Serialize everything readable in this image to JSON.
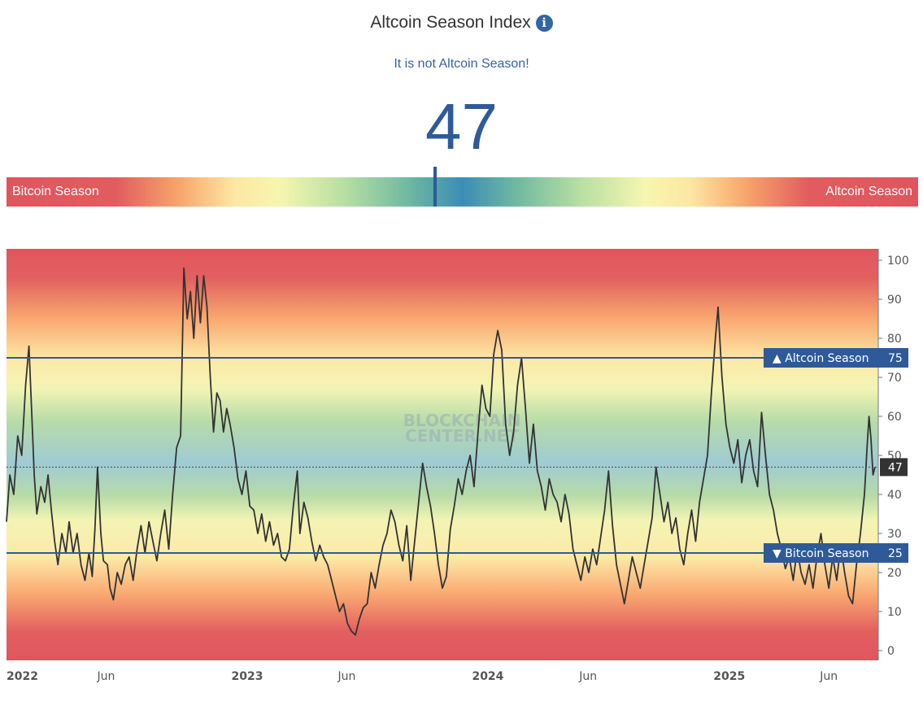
{
  "header": {
    "title": "Altcoin Season Index",
    "info_icon": "info-icon",
    "status": "It is not Altcoin Season!",
    "index_value": "47"
  },
  "gradient_bar": {
    "left_label": "Bitcoin Season",
    "right_label": "Altcoin Season",
    "marker_value": 47
  },
  "watermark": [
    "BLOCKCHAIN",
    "CENTER.NET"
  ],
  "chart_data": {
    "type": "line",
    "y_range": [
      0,
      100
    ],
    "x_range": [
      "2022-01-01",
      "2025-08-15"
    ],
    "y_ticks": [
      0,
      10,
      20,
      30,
      40,
      50,
      60,
      70,
      80,
      90,
      100
    ],
    "x_ticks": [
      {
        "label": "2022",
        "date": "2022-01-01",
        "bold": true
      },
      {
        "label": "Jun",
        "date": "2022-06-01",
        "bold": false
      },
      {
        "label": "2023",
        "date": "2023-01-01",
        "bold": true
      },
      {
        "label": "Jun",
        "date": "2023-06-01",
        "bold": false
      },
      {
        "label": "2024",
        "date": "2024-01-01",
        "bold": true
      },
      {
        "label": "Jun",
        "date": "2024-06-01",
        "bold": false
      },
      {
        "label": "2025",
        "date": "2025-01-01",
        "bold": true
      },
      {
        "label": "Jun",
        "date": "2025-06-01",
        "bold": false
      }
    ],
    "thresholds": [
      {
        "label": "▲ Altcoin Season",
        "value": 75
      },
      {
        "label": "▼ Bitcoin Season",
        "value": 25
      }
    ],
    "current": {
      "value": 47
    },
    "line_color": "#333333",
    "threshold_color": "#2e5a9a",
    "series": [
      {
        "points": [
          [
            "2022-01-01",
            33
          ],
          [
            "2022-01-06",
            45
          ],
          [
            "2022-01-12",
            40
          ],
          [
            "2022-01-18",
            55
          ],
          [
            "2022-01-24",
            50
          ],
          [
            "2022-01-30",
            68
          ],
          [
            "2022-02-04",
            78
          ],
          [
            "2022-02-08",
            62
          ],
          [
            "2022-02-12",
            45
          ],
          [
            "2022-02-16",
            35
          ],
          [
            "2022-02-22",
            42
          ],
          [
            "2022-02-28",
            38
          ],
          [
            "2022-03-05",
            45
          ],
          [
            "2022-03-10",
            36
          ],
          [
            "2022-03-15",
            28
          ],
          [
            "2022-03-20",
            22
          ],
          [
            "2022-03-26",
            30
          ],
          [
            "2022-04-01",
            25
          ],
          [
            "2022-04-06",
            33
          ],
          [
            "2022-04-12",
            25
          ],
          [
            "2022-04-18",
            30
          ],
          [
            "2022-04-24",
            22
          ],
          [
            "2022-04-30",
            18
          ],
          [
            "2022-05-06",
            25
          ],
          [
            "2022-05-11",
            19
          ],
          [
            "2022-05-15",
            31
          ],
          [
            "2022-05-19",
            47
          ],
          [
            "2022-05-24",
            30
          ],
          [
            "2022-05-28",
            23
          ],
          [
            "2022-06-03",
            22
          ],
          [
            "2022-06-07",
            16
          ],
          [
            "2022-06-12",
            13
          ],
          [
            "2022-06-18",
            20
          ],
          [
            "2022-06-24",
            17
          ],
          [
            "2022-06-30",
            22
          ],
          [
            "2022-07-06",
            24
          ],
          [
            "2022-07-12",
            18
          ],
          [
            "2022-07-18",
            26
          ],
          [
            "2022-07-24",
            32
          ],
          [
            "2022-07-30",
            25
          ],
          [
            "2022-08-05",
            33
          ],
          [
            "2022-08-11",
            28
          ],
          [
            "2022-08-17",
            23
          ],
          [
            "2022-08-23",
            30
          ],
          [
            "2022-08-29",
            36
          ],
          [
            "2022-09-04",
            26
          ],
          [
            "2022-09-10",
            40
          ],
          [
            "2022-09-16",
            52
          ],
          [
            "2022-09-22",
            55
          ],
          [
            "2022-09-27",
            98
          ],
          [
            "2022-10-02",
            85
          ],
          [
            "2022-10-07",
            92
          ],
          [
            "2022-10-12",
            80
          ],
          [
            "2022-10-17",
            96
          ],
          [
            "2022-10-22",
            84
          ],
          [
            "2022-10-27",
            96
          ],
          [
            "2022-11-01",
            88
          ],
          [
            "2022-11-06",
            70
          ],
          [
            "2022-11-11",
            56
          ],
          [
            "2022-11-16",
            66
          ],
          [
            "2022-11-21",
            64
          ],
          [
            "2022-11-26",
            56
          ],
          [
            "2022-12-01",
            62
          ],
          [
            "2022-12-06",
            58
          ],
          [
            "2022-12-12",
            52
          ],
          [
            "2022-12-18",
            44
          ],
          [
            "2022-12-24",
            40
          ],
          [
            "2022-12-30",
            46
          ],
          [
            "2023-01-05",
            37
          ],
          [
            "2023-01-11",
            36
          ],
          [
            "2023-01-17",
            30
          ],
          [
            "2023-01-23",
            35
          ],
          [
            "2023-01-29",
            28
          ],
          [
            "2023-02-04",
            33
          ],
          [
            "2023-02-10",
            27
          ],
          [
            "2023-02-16",
            30
          ],
          [
            "2023-02-22",
            24
          ],
          [
            "2023-02-28",
            23
          ],
          [
            "2023-03-06",
            26
          ],
          [
            "2023-03-12",
            37
          ],
          [
            "2023-03-18",
            46
          ],
          [
            "2023-03-22",
            30
          ],
          [
            "2023-03-28",
            38
          ],
          [
            "2023-04-03",
            34
          ],
          [
            "2023-04-09",
            28
          ],
          [
            "2023-04-15",
            23
          ],
          [
            "2023-04-21",
            27
          ],
          [
            "2023-04-27",
            24
          ],
          [
            "2023-05-03",
            22
          ],
          [
            "2023-05-09",
            18
          ],
          [
            "2023-05-15",
            14
          ],
          [
            "2023-05-21",
            10
          ],
          [
            "2023-05-27",
            12
          ],
          [
            "2023-06-02",
            7
          ],
          [
            "2023-06-08",
            5
          ],
          [
            "2023-06-14",
            4
          ],
          [
            "2023-06-20",
            8
          ],
          [
            "2023-06-26",
            11
          ],
          [
            "2023-07-02",
            12
          ],
          [
            "2023-07-08",
            20
          ],
          [
            "2023-07-14",
            16
          ],
          [
            "2023-07-20",
            22
          ],
          [
            "2023-07-26",
            27
          ],
          [
            "2023-08-01",
            30
          ],
          [
            "2023-08-07",
            36
          ],
          [
            "2023-08-13",
            33
          ],
          [
            "2023-08-19",
            27
          ],
          [
            "2023-08-25",
            23
          ],
          [
            "2023-08-31",
            32
          ],
          [
            "2023-09-06",
            18
          ],
          [
            "2023-09-12",
            28
          ],
          [
            "2023-09-18",
            38
          ],
          [
            "2023-09-24",
            48
          ],
          [
            "2023-09-30",
            42
          ],
          [
            "2023-10-06",
            37
          ],
          [
            "2023-10-12",
            30
          ],
          [
            "2023-10-18",
            22
          ],
          [
            "2023-10-24",
            16
          ],
          [
            "2023-10-30",
            19
          ],
          [
            "2023-11-05",
            31
          ],
          [
            "2023-11-11",
            37
          ],
          [
            "2023-11-17",
            44
          ],
          [
            "2023-11-23",
            40
          ],
          [
            "2023-11-29",
            46
          ],
          [
            "2023-12-05",
            50
          ],
          [
            "2023-12-11",
            42
          ],
          [
            "2023-12-17",
            56
          ],
          [
            "2023-12-23",
            68
          ],
          [
            "2023-12-29",
            62
          ],
          [
            "2024-01-04",
            60
          ],
          [
            "2024-01-10",
            76
          ],
          [
            "2024-01-16",
            82
          ],
          [
            "2024-01-22",
            77
          ],
          [
            "2024-01-28",
            58
          ],
          [
            "2024-02-03",
            50
          ],
          [
            "2024-02-09",
            56
          ],
          [
            "2024-02-15",
            68
          ],
          [
            "2024-02-21",
            75
          ],
          [
            "2024-02-27",
            62
          ],
          [
            "2024-03-04",
            48
          ],
          [
            "2024-03-10",
            58
          ],
          [
            "2024-03-16",
            46
          ],
          [
            "2024-03-22",
            42
          ],
          [
            "2024-03-28",
            36
          ],
          [
            "2024-04-03",
            44
          ],
          [
            "2024-04-09",
            40
          ],
          [
            "2024-04-15",
            38
          ],
          [
            "2024-04-21",
            33
          ],
          [
            "2024-04-27",
            40
          ],
          [
            "2024-05-03",
            35
          ],
          [
            "2024-05-09",
            26
          ],
          [
            "2024-05-15",
            22
          ],
          [
            "2024-05-21",
            18
          ],
          [
            "2024-05-27",
            24
          ],
          [
            "2024-06-02",
            20
          ],
          [
            "2024-06-08",
            26
          ],
          [
            "2024-06-14",
            22
          ],
          [
            "2024-06-20",
            29
          ],
          [
            "2024-06-26",
            36
          ],
          [
            "2024-07-02",
            46
          ],
          [
            "2024-07-08",
            32
          ],
          [
            "2024-07-14",
            22
          ],
          [
            "2024-07-20",
            17
          ],
          [
            "2024-07-26",
            12
          ],
          [
            "2024-08-01",
            18
          ],
          [
            "2024-08-07",
            24
          ],
          [
            "2024-08-13",
            20
          ],
          [
            "2024-08-19",
            16
          ],
          [
            "2024-08-25",
            22
          ],
          [
            "2024-08-31",
            28
          ],
          [
            "2024-09-06",
            34
          ],
          [
            "2024-09-12",
            47
          ],
          [
            "2024-09-18",
            40
          ],
          [
            "2024-09-24",
            33
          ],
          [
            "2024-09-30",
            38
          ],
          [
            "2024-10-06",
            30
          ],
          [
            "2024-10-12",
            34
          ],
          [
            "2024-10-18",
            26
          ],
          [
            "2024-10-24",
            22
          ],
          [
            "2024-10-30",
            30
          ],
          [
            "2024-11-05",
            36
          ],
          [
            "2024-11-11",
            28
          ],
          [
            "2024-11-17",
            38
          ],
          [
            "2024-11-23",
            44
          ],
          [
            "2024-11-29",
            50
          ],
          [
            "2024-12-05",
            66
          ],
          [
            "2024-12-11",
            80
          ],
          [
            "2024-12-15",
            88
          ],
          [
            "2024-12-21",
            70
          ],
          [
            "2024-12-27",
            58
          ],
          [
            "2025-01-02",
            52
          ],
          [
            "2025-01-08",
            48
          ],
          [
            "2025-01-14",
            54
          ],
          [
            "2025-01-20",
            43
          ],
          [
            "2025-01-26",
            50
          ],
          [
            "2025-02-01",
            54
          ],
          [
            "2025-02-07",
            46
          ],
          [
            "2025-02-13",
            42
          ],
          [
            "2025-02-19",
            61
          ],
          [
            "2025-02-25",
            50
          ],
          [
            "2025-03-03",
            40
          ],
          [
            "2025-03-09",
            36
          ],
          [
            "2025-03-15",
            30
          ],
          [
            "2025-03-21",
            26
          ],
          [
            "2025-03-27",
            21
          ],
          [
            "2025-04-02",
            24
          ],
          [
            "2025-04-08",
            18
          ],
          [
            "2025-04-14",
            26
          ],
          [
            "2025-04-20",
            20
          ],
          [
            "2025-04-26",
            17
          ],
          [
            "2025-05-02",
            22
          ],
          [
            "2025-05-08",
            16
          ],
          [
            "2025-05-14",
            24
          ],
          [
            "2025-05-20",
            30
          ],
          [
            "2025-05-26",
            22
          ],
          [
            "2025-06-01",
            16
          ],
          [
            "2025-06-07",
            24
          ],
          [
            "2025-06-13",
            18
          ],
          [
            "2025-06-19",
            27
          ],
          [
            "2025-06-25",
            20
          ],
          [
            "2025-07-01",
            14
          ],
          [
            "2025-07-07",
            12
          ],
          [
            "2025-07-13",
            22
          ],
          [
            "2025-07-19",
            30
          ],
          [
            "2025-07-25",
            40
          ],
          [
            "2025-07-29",
            52
          ],
          [
            "2025-08-01",
            60
          ],
          [
            "2025-08-04",
            54
          ],
          [
            "2025-08-07",
            45
          ],
          [
            "2025-08-10",
            47
          ]
        ]
      }
    ]
  }
}
